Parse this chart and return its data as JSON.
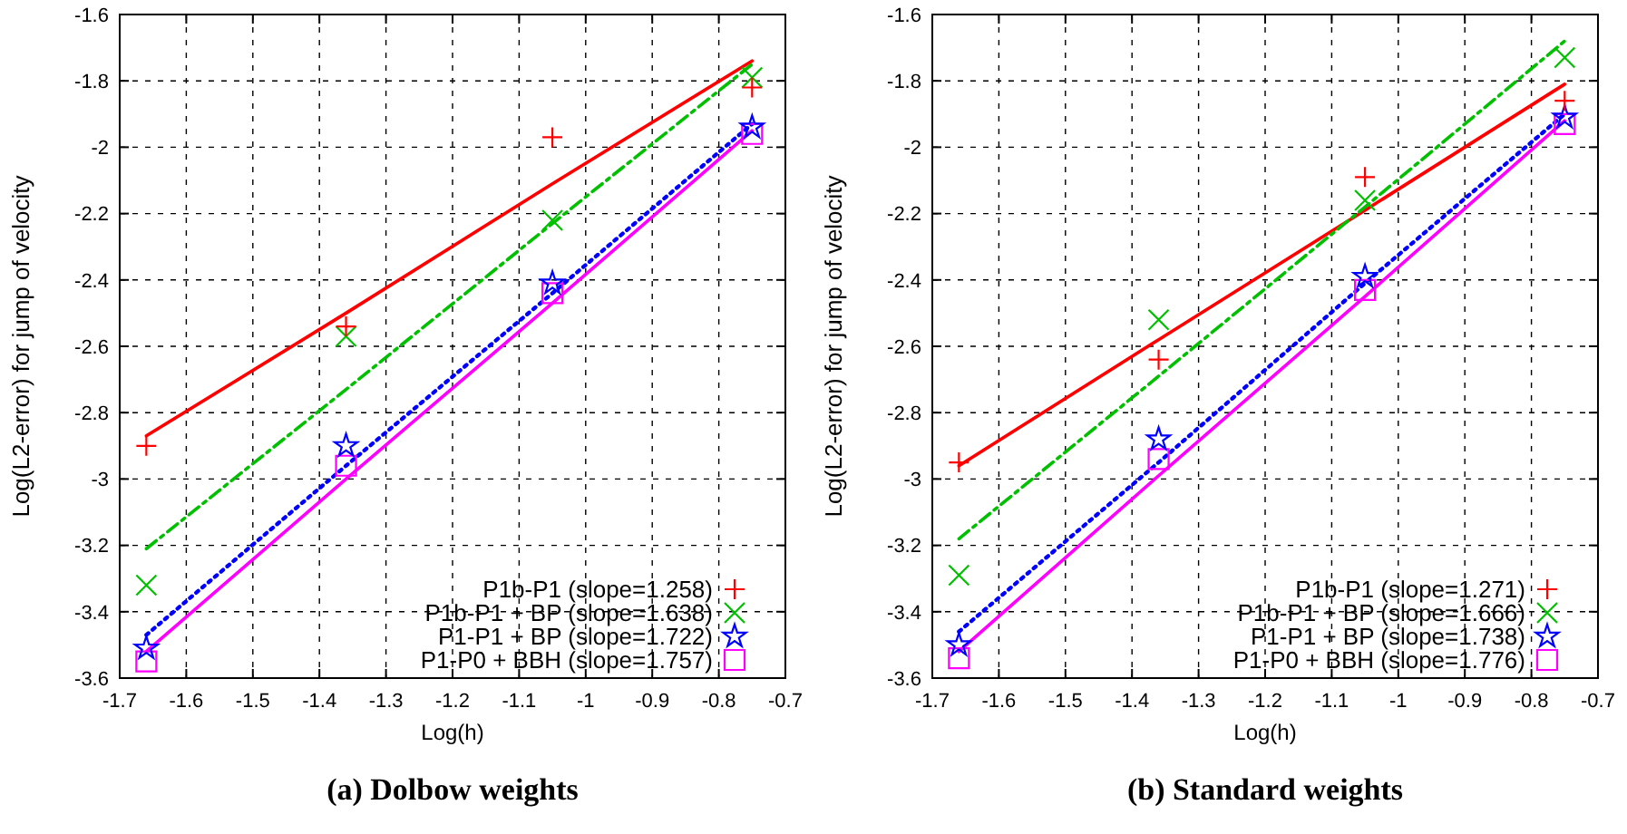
{
  "chart_data": [
    {
      "type": "scatter",
      "title": "(a) Dolbow weights",
      "xlabel": "Log(h)",
      "ylabel": "Log(L2-error) for jump of velocity",
      "xlim": [
        -1.7,
        -0.7
      ],
      "xticks": [
        -1.7,
        -1.6,
        -1.5,
        -1.4,
        -1.3,
        -1.2,
        -1.1,
        -1,
        -0.9,
        -0.8,
        -0.7
      ],
      "ylim": [
        -3.6,
        -1.6
      ],
      "yticks": [
        -3.6,
        -3.4,
        -3.2,
        -3,
        -2.8,
        -2.6,
        -2.4,
        -2.2,
        -2,
        -1.8,
        -1.6
      ],
      "grid": true,
      "legend": "bottom right",
      "x": [
        -1.66,
        -1.36,
        -1.05,
        -0.75
      ],
      "series": [
        {
          "type": "line",
          "color": "#ff0000",
          "line_style": "solid",
          "marker": "none",
          "values": [
            -2.87,
            -2.5,
            -2.11,
            -1.74
          ]
        },
        {
          "type": "line",
          "color": "#00c000",
          "line_style": "dashed",
          "marker": "none",
          "values": [
            -3.21,
            -2.73,
            -2.23,
            -1.75
          ]
        },
        {
          "type": "line",
          "color": "#0000ff",
          "line_style": "dotted",
          "marker": "none",
          "values": [
            -3.47,
            -2.96,
            -2.44,
            -1.93
          ]
        },
        {
          "type": "line",
          "color": "#ff00ff",
          "line_style": "solid",
          "marker": "none",
          "values": [
            -3.52,
            -3.0,
            -2.47,
            -1.95
          ]
        },
        {
          "name": "P1b-P1 (slope=1.258)",
          "color": "#ff0000",
          "marker": "cross",
          "values": [
            -2.9,
            -2.54,
            -1.97,
            -1.82
          ]
        },
        {
          "name": "P1b-P1 + BP (slope=1.638)",
          "color": "#00c000",
          "marker": "x",
          "values": [
            -3.32,
            -2.57,
            -2.22,
            -1.79
          ]
        },
        {
          "name": "P1-P1 + BP (slope=1.722)",
          "color": "#0000ff",
          "marker": "star",
          "values": [
            -3.51,
            -2.9,
            -2.41,
            -1.94
          ]
        },
        {
          "name": "P1-P0 + BBH (slope=1.757)",
          "color": "#ff00ff",
          "marker": "square",
          "values": [
            -3.55,
            -2.96,
            -2.44,
            -1.96
          ]
        }
      ]
    },
    {
      "type": "scatter",
      "title": "(b) Standard weights",
      "xlabel": "Log(h)",
      "ylabel": "Log(L2-error) for jump of velocity",
      "xlim": [
        -1.7,
        -0.7
      ],
      "xticks": [
        -1.7,
        -1.6,
        -1.5,
        -1.4,
        -1.3,
        -1.2,
        -1.1,
        -1,
        -0.9,
        -0.8,
        -0.7
      ],
      "ylim": [
        -3.6,
        -1.6
      ],
      "yticks": [
        -3.6,
        -3.4,
        -3.2,
        -3,
        -2.8,
        -2.6,
        -2.4,
        -2.2,
        -2,
        -1.8,
        -1.6
      ],
      "grid": true,
      "legend": "bottom right",
      "x": [
        -1.66,
        -1.36,
        -1.05,
        -0.75
      ],
      "series": [
        {
          "type": "line",
          "color": "#ff0000",
          "line_style": "solid",
          "marker": "none",
          "values": [
            -2.96,
            -2.58,
            -2.19,
            -1.81
          ]
        },
        {
          "type": "line",
          "color": "#00c000",
          "line_style": "dashed",
          "marker": "none",
          "values": [
            -3.18,
            -2.69,
            -2.18,
            -1.68
          ]
        },
        {
          "type": "line",
          "color": "#0000ff",
          "line_style": "dotted",
          "marker": "none",
          "values": [
            -3.46,
            -2.95,
            -2.41,
            -1.9
          ]
        },
        {
          "type": "line",
          "color": "#ff00ff",
          "line_style": "solid",
          "marker": "none",
          "values": [
            -3.52,
            -2.99,
            -2.45,
            -1.92
          ]
        },
        {
          "name": "P1b-P1 (slope=1.271)",
          "color": "#ff0000",
          "marker": "cross",
          "values": [
            -2.95,
            -2.64,
            -2.09,
            -1.86
          ]
        },
        {
          "name": "P1b-P1 + BP (slope=1.666)",
          "color": "#00c000",
          "marker": "x",
          "values": [
            -3.29,
            -2.52,
            -2.16,
            -1.73
          ]
        },
        {
          "name": "P1-P1 + BP (slope=1.738)",
          "color": "#0000ff",
          "marker": "star",
          "values": [
            -3.5,
            -2.88,
            -2.39,
            -1.91
          ]
        },
        {
          "name": "P1-P0 + BBH (slope=1.776)",
          "color": "#ff00ff",
          "marker": "square",
          "values": [
            -3.54,
            -2.94,
            -2.43,
            -1.93
          ]
        }
      ]
    }
  ]
}
